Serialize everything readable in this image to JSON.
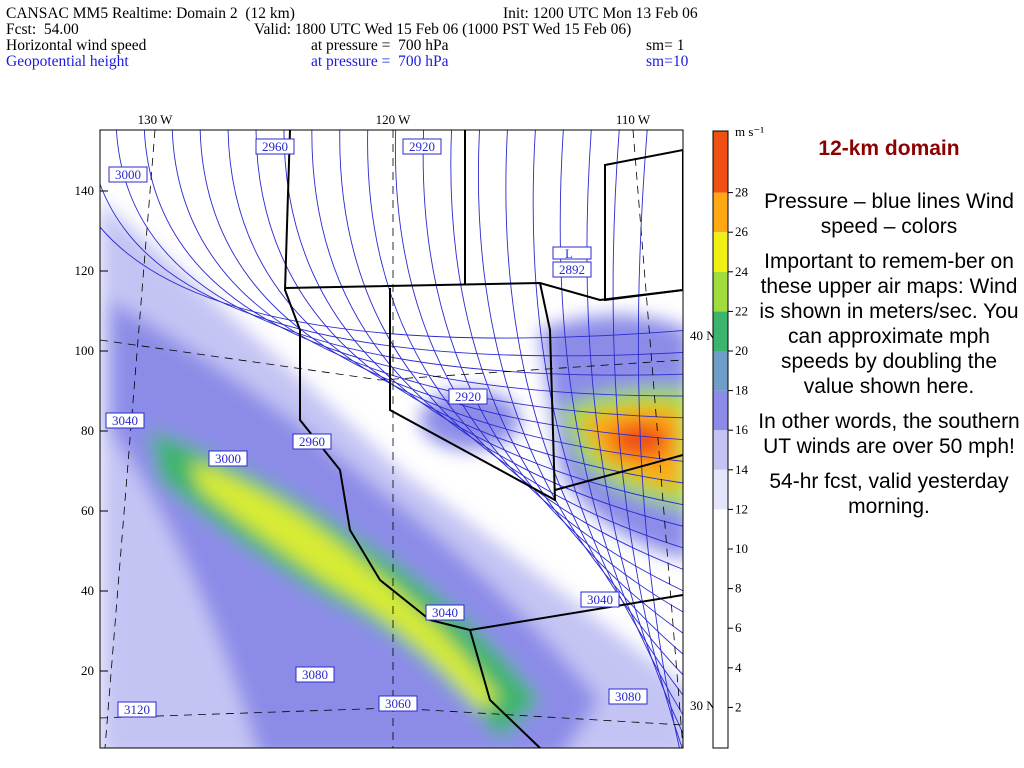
{
  "header": {
    "lines": [
      [
        "CANSAC MM5 Realtime: Domain 2  (12 km)",
        "Init: 1200 UTC Mon 13 Feb 06"
      ],
      [
        "Fcst:  54.00",
        "Valid: 1800 UTC Wed 15 Feb 06 (1000 PST Wed 15 Feb 06)"
      ],
      [
        "Horizontal wind speed",
        "at pressure =  700 hPa",
        "sm= 1"
      ],
      [
        "Geopotential height",
        "at pressure =  700 hPa",
        "sm=10"
      ]
    ]
  },
  "map": {
    "left_ticks": [
      140,
      120,
      100,
      80,
      60,
      40,
      20
    ],
    "top_labels": [
      "130 W",
      "120 W",
      "110 W"
    ],
    "right_labels": [
      "40 N",
      "30 N"
    ],
    "low_label": "L",
    "contour_labels": [
      "2960",
      "2920",
      "3000",
      "2892",
      "2920",
      "3040",
      "2960",
      "3000",
      "3040",
      "3040",
      "3080",
      "3060",
      "3080",
      "3120"
    ]
  },
  "colorbar": {
    "unit": "m s⁻¹",
    "ticks": [
      2,
      4,
      6,
      8,
      10,
      12,
      14,
      16,
      18,
      20,
      22,
      24,
      26,
      28
    ],
    "colors": [
      "#ffffff",
      "#ffffff",
      "#ffffff",
      "#ffffff",
      "#ffffff",
      "#ffffff",
      "#e4e4fa",
      "#c4c4f4",
      "#8c8ce8",
      "#6e9ec8",
      "#3cb46e",
      "#a0dc3c",
      "#f0f014",
      "#ffa814",
      "#f05014"
    ]
  },
  "notes": {
    "title": "12-km domain",
    "paragraphs": [
      "Pressure – blue lines Wind speed – colors",
      "Important to remem-ber on these upper air maps:  Wind is shown in meters/sec.  You can approximate mph speeds by doubling the value shown here.",
      "In other words, the southern UT winds are over 50 mph!",
      "54-hr fcst, valid yesterday morning."
    ]
  }
}
